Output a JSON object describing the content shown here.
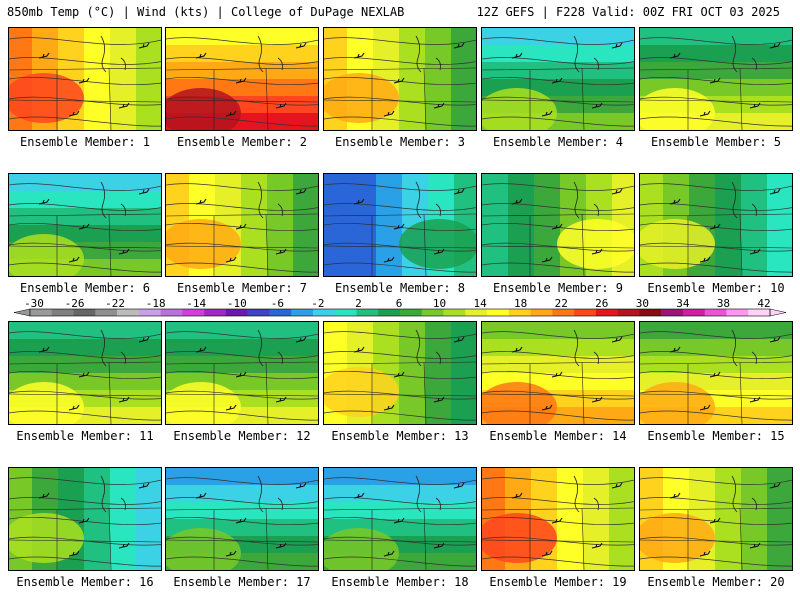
{
  "header": {
    "left": "850mb Temp (°C) | Wind (kts) | College of DuPage NEXLAB",
    "right": "12Z GEFS | F228 Valid: 00Z FRI OCT 03 2025"
  },
  "colorbar": {
    "labels": [
      "-30",
      "-26",
      "-22",
      "-18",
      "-14",
      "-10",
      "-6",
      "-2",
      "2",
      "6",
      "10",
      "14",
      "18",
      "22",
      "26",
      "30",
      "34",
      "38",
      "42"
    ],
    "colors": [
      "#999999",
      "#7f7f7f",
      "#666666",
      "#8f8f8f",
      "#bbbbbb",
      "#c8a0e6",
      "#b873d8",
      "#d63cd6",
      "#9d29c8",
      "#6a19b3",
      "#4040c8",
      "#2a66d8",
      "#2aa0e6",
      "#3cd2e6",
      "#2ae6c0",
      "#20c080",
      "#1aa050",
      "#3ca83c",
      "#78c828",
      "#aae020",
      "#e6f028",
      "#ffff28",
      "#ffd21e",
      "#ffaa14",
      "#ff7814",
      "#ff461e",
      "#e6141e",
      "#b4141e",
      "#8c0a14",
      "#a01478",
      "#d21ea0",
      "#f050d2",
      "#ff96f0",
      "#ffd2f8"
    ]
  },
  "members": [
    {
      "label": "Ensemble Member: 1",
      "warmth": 0.75,
      "warm_side": "west"
    },
    {
      "label": "Ensemble Member: 2",
      "warmth": 0.9,
      "warm_side": "south"
    },
    {
      "label": "Ensemble Member: 3",
      "warmth": 0.65,
      "warm_side": "west"
    },
    {
      "label": "Ensemble Member: 4",
      "warmth": 0.4,
      "warm_side": "south"
    },
    {
      "label": "Ensemble Member: 5",
      "warmth": 0.5,
      "warm_side": "south"
    },
    {
      "label": "Ensemble Member: 6",
      "warmth": 0.4,
      "warm_side": "south"
    },
    {
      "label": "Ensemble Member: 7",
      "warmth": 0.65,
      "warm_side": "west"
    },
    {
      "label": "Ensemble Member: 8",
      "warmth": 0.2,
      "warm_side": "east"
    },
    {
      "label": "Ensemble Member: 9",
      "warmth": 0.5,
      "warm_side": "east"
    },
    {
      "label": "Ensemble Member: 10",
      "warmth": 0.45,
      "warm_side": "west"
    },
    {
      "label": "Ensemble Member: 11",
      "warmth": 0.5,
      "warm_side": "south"
    },
    {
      "label": "Ensemble Member: 12",
      "warmth": 0.5,
      "warm_side": "south"
    },
    {
      "label": "Ensemble Member: 13",
      "warmth": 0.55,
      "warm_side": "west"
    },
    {
      "label": "Ensemble Member: 14",
      "warmth": 0.7,
      "warm_side": "south"
    },
    {
      "label": "Ensemble Member: 15",
      "warmth": 0.6,
      "warm_side": "south"
    },
    {
      "label": "Ensemble Member: 16",
      "warmth": 0.4,
      "warm_side": "west"
    },
    {
      "label": "Ensemble Member: 17",
      "warmth": 0.3,
      "warm_side": "south"
    },
    {
      "label": "Ensemble Member: 18",
      "warmth": 0.3,
      "warm_side": "south"
    },
    {
      "label": "Ensemble Member: 19",
      "warmth": 0.75,
      "warm_side": "west"
    },
    {
      "label": "Ensemble Member: 20",
      "warmth": 0.65,
      "warm_side": "west"
    }
  ]
}
